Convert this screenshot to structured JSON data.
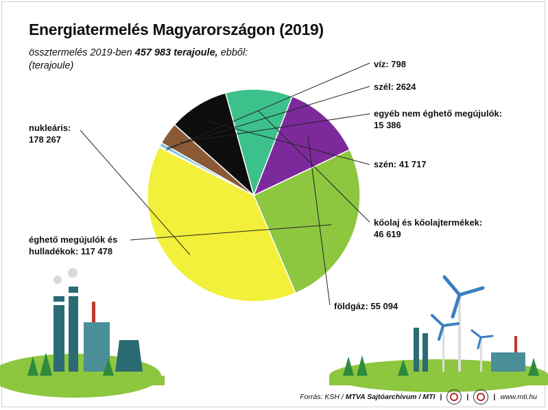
{
  "title": "Energiatermelés Magyarországon (2019)",
  "subtitle": {
    "prefix": "össztermelés 2019-ben ",
    "total": "457 983 terajoule,",
    "suffix": " ebből:",
    "unit": "(terajoule)"
  },
  "chart_data": {
    "type": "pie",
    "title": "Energiatermelés Magyarországon (2019)",
    "unit": "terajoule",
    "total": 457983,
    "slices": [
      {
        "label": "víz",
        "value": 798,
        "display": "víz: 798",
        "color": "#2fa3c4"
      },
      {
        "label": "szél",
        "value": 2624,
        "display": "szél: 2624",
        "color": "#7fc6e0"
      },
      {
        "label": "egyéb nem éghető megújulók",
        "value": 15386,
        "display_line1": "egyéb nem éghető megújulók:",
        "display_line2": "15 386",
        "color": "#8a5a36"
      },
      {
        "label": "szén",
        "value": 41717,
        "display": "szén: 41 717",
        "color": "#0d0d0d"
      },
      {
        "label": "kőolaj és kőolajtermékek",
        "value": 46619,
        "display_line1": "kőolaj és kőolajtermékek:",
        "display_line2": "46 619",
        "color": "#3dc18c"
      },
      {
        "label": "földgáz",
        "value": 55094,
        "display": "földgáz: 55 094",
        "color": "#7c2a9b"
      },
      {
        "label": "éghető megújulók és hulladékok",
        "value": 117478,
        "display_line1": "éghető megújulók és",
        "display_line2": "hulladékok: 117 478",
        "color": "#8dc63f"
      },
      {
        "label": "nukleáris",
        "value": 178267,
        "display_line1": "nukleáris:",
        "display_line2": "178 267",
        "color": "#f2f03a"
      }
    ]
  },
  "footer": {
    "source": "Forrás: KSH / ",
    "archive": "MTVA Sajtóarchívum / MTI",
    "url": "www.mti.hu"
  }
}
